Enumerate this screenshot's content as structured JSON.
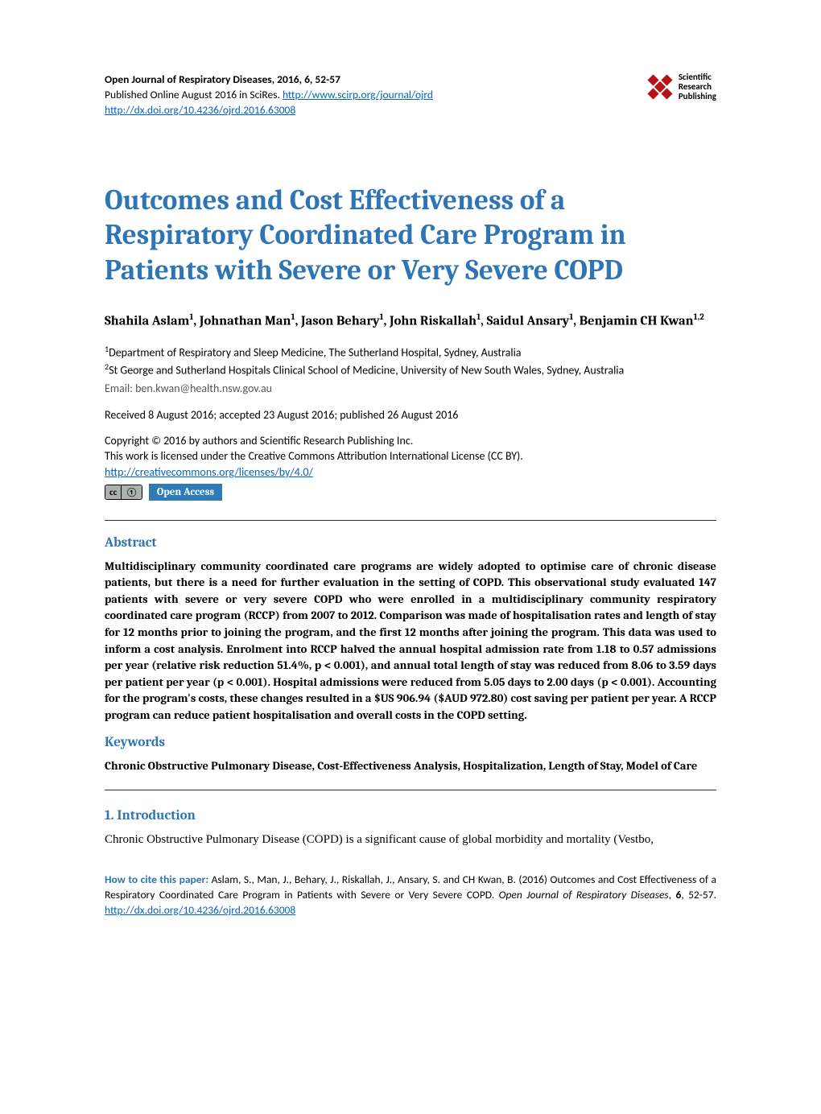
{
  "header": {
    "journal_line": "Open Journal of Respiratory Diseases, 2016, 6, 52-57",
    "published_prefix": "Published Online August 2016 in SciRes. ",
    "journal_url": "http://www.scirp.org/journal/ojrd",
    "doi_url": "http://dx.doi.org/10.4236/ojrd.2016.63008",
    "logo_text_line1": "Scientific",
    "logo_text_line2": "Research",
    "logo_text_line3": "Publishing"
  },
  "title": "Outcomes and Cost Effectiveness of a Respiratory Coordinated Care Program in Patients with Severe or Very Severe COPD",
  "authors_html": "Shahila Aslam<sup>1</sup>, Johnathan Man<sup>1</sup>, Jason Behary<sup>1</sup>, John Riskallah<sup>1</sup>, Saidul Ansary<sup>1</sup>, Benjamin CH Kwan<sup>1,2</sup>",
  "affiliations": {
    "aff1": "Department of Respiratory and Sleep Medicine, The Sutherland Hospital, Sydney, Australia",
    "aff2": "St George and Sutherland Hospitals Clinical School of Medicine, University of New South Wales, Sydney, Australia"
  },
  "email_label": "Email: ",
  "email_value": "ben.kwan@health.nsw.gov.au",
  "dates": "Received 8 August 2016; accepted 23 August 2016; published 26 August 2016",
  "copyright_line1": "Copyright © 2016 by authors and Scientific Research Publishing Inc.",
  "copyright_line2": "This work is licensed under the Creative Commons Attribution International License (CC BY).",
  "cc_url": "http://creativecommons.org/licenses/by/4.0/",
  "cc_badge_left": "cc",
  "cc_badge_right": "①",
  "oa_badge": "Open Access",
  "sections": {
    "abstract_heading": "Abstract",
    "abstract_body": "Multidisciplinary community coordinated care programs are widely adopted to optimise care of chronic disease patients, but there is a need for further evaluation in the setting of COPD. This observational study evaluated 147 patients with severe or very severe COPD who were enrolled in a multidisciplinary community respiratory coordinated care program (RCCP) from 2007 to 2012. Comparison was made of hospitalisation rates and length of stay for 12 months prior to joining the program, and the first 12 months after joining the program. This data was used to inform a cost analysis. Enrolment into RCCP halved the annual hospital admission rate from 1.18 to 0.57 admissions per year (relative risk reduction 51.4%, p < 0.001), and annual total length of stay was reduced from 8.06 to 3.59 days per patient per year (p < 0.001). Hospital admissions were reduced from 5.05 days to 2.00 days (p < 0.001). Accounting for the program's costs, these changes resulted in a $US 906.94 ($AUD 972.80) cost saving per patient per year. A RCCP program can reduce patient hospitalisation and overall costs in the COPD setting.",
    "keywords_heading": "Keywords",
    "keywords_body": "Chronic Obstructive Pulmonary Disease, Cost-Effectiveness Analysis, Hospitalization, Length of Stay, Model of Care",
    "intro_heading": "1. Introduction",
    "intro_body": "Chronic Obstructive Pulmonary Disease (COPD) is a significant cause of global morbidity and mortality (Vestbo,"
  },
  "citation": {
    "label": "How to cite this paper: ",
    "text_before_journal": "Aslam, S., Man, J., Behary, J., Riskallah, J., Ansary, S. and CH Kwan, B. (2016) Outcomes and Cost Effectiveness of a Respiratory Coordinated Care Program in Patients with Severe or Very Severe COPD. ",
    "journal_italic": "Open Journal of Respiratory Diseases",
    "text_after_journal": ", ",
    "volume": "6",
    "pages": ", 52-57. ",
    "doi": "http://dx.doi.org/10.4236/ojrd.2016.63008"
  },
  "colors": {
    "accent": "#2e75b6",
    "link": "#0563c1",
    "logo_red": "#b81118",
    "oa_bg": "#2e7bb6",
    "text": "#000000",
    "rule": "#333333"
  }
}
